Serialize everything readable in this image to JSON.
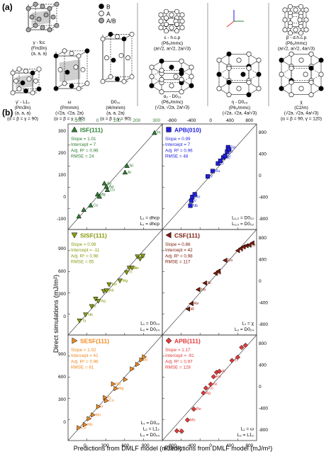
{
  "panel_a": {
    "label": "(a)",
    "legend": [
      {
        "label": "B",
        "color": "#000000"
      },
      {
        "label": "A",
        "color": "#ffffff"
      },
      {
        "label": "A/B",
        "color": "#a0a0a0"
      }
    ],
    "structures": [
      {
        "id": "gamma",
        "name": "γ - fcc",
        "group": "(Fm3̄m)",
        "params": "(a, a, a)",
        "angles": ""
      },
      {
        "id": "gamma-prime",
        "name": "γ' - L1₂",
        "group": "(Pm3̄m)",
        "params": "(a, a, a)",
        "angles": "(α = β = γ = 90)"
      },
      {
        "id": "omega",
        "name": "ω",
        "group": "(P/mmm)",
        "params": "(√2a, √2a, 2a)",
        "angles": "(α = β = γ = 90)"
      },
      {
        "id": "d022",
        "name": "D0₂₂",
        "group": "(I4/mmm)",
        "params": "(a, a, 2a)",
        "angles": "(α = β = γ = 90)"
      },
      {
        "id": "epsilon",
        "name": "ε - h.c.p",
        "group": "(P6₃/mmc)",
        "params": "(a/√2, a/√2, 2a/√3)",
        "angles": ""
      },
      {
        "id": "alpha2",
        "name": "α₂ - D0₁₉",
        "group": "(P6₃/mmc)",
        "params": "(√2a, √2a, 2a/√3)",
        "angles": ""
      },
      {
        "id": "beta",
        "name": "β - d.h.c.p",
        "group": "(P6₃/mmc)",
        "params": "(a/√2, a/√2, 4a/√3)",
        "angles": ""
      },
      {
        "id": "eta",
        "name": "η - D0₂₄",
        "group": "(P6₃/mmc)",
        "params": "(√2a, √2a, 4a/√3)",
        "angles": ""
      },
      {
        "id": "chi",
        "name": "χ",
        "group": "(C2/m)",
        "params": "(√2a, √2a, 4a/√3)",
        "angles": "(α = β = 90, γ = 120)"
      }
    ]
  },
  "panel_b": {
    "label": "(b)",
    "xlabel": "Predictions from DMLF model (mJ/m²)",
    "ylabel": "Direct simulations (mJ/m²)"
  },
  "chart_data": [
    {
      "type": "scatter",
      "title": "ISF(111)",
      "color": "#2e7d32",
      "marker": "triangle-up",
      "stats": [
        "Slope = 1.01",
        "Intercept = 7",
        "Adj. R² = 0.96",
        "RMSE = 24"
      ],
      "notes": [
        "L₁ = dhcp",
        "L₂ = dhcp"
      ],
      "xticks": [
        "-100",
        "0",
        "100",
        "200",
        "300"
      ],
      "yticks": [
        "-100",
        "0",
        "100",
        "200",
        "300"
      ],
      "xlim": [
        -150,
        330
      ],
      "ylim": [
        -150,
        330
      ],
      "points": [
        {
          "x": -95,
          "y": -90,
          "label": ""
        },
        {
          "x": -70,
          "y": -60,
          "label": ""
        },
        {
          "x": -35,
          "y": -40,
          "label": "Co"
        },
        {
          "x": 0,
          "y": 10,
          "label": "Mg"
        },
        {
          "x": 10,
          "y": 0,
          "label": ""
        },
        {
          "x": 35,
          "y": 60,
          "label": "Au"
        },
        {
          "x": 45,
          "y": 45,
          "label": "Ag"
        },
        {
          "x": 50,
          "y": 30,
          "label": "Cu"
        },
        {
          "x": 140,
          "y": 110,
          "label": "Al"
        },
        {
          "x": 150,
          "y": 140,
          "label": "Ni"
        },
        {
          "x": 290,
          "y": 290,
          "label": "Pt"
        }
      ]
    },
    {
      "type": "scatter",
      "title": "APB(010)",
      "color": "#1f1fe0",
      "marker": "square",
      "stats": [
        "Slope = 0.99",
        "Intercept = 7",
        "Adj. R² = 0.96",
        "RMSE = 48"
      ],
      "notes": [
        "L₁,₂ = D0₂₂",
        "L₁,₂ = D0₂₂"
      ],
      "xticks": [],
      "yticks": [],
      "xlim": [
        -1000,
        950
      ],
      "ylim": [
        -1000,
        950
      ],
      "points": [
        {
          "x": -420,
          "y": -560,
          "label": "Nb"
        },
        {
          "x": -400,
          "y": -470,
          "label": "V"
        },
        {
          "x": -380,
          "y": -400,
          "label": "Mo"
        },
        {
          "x": -330,
          "y": -350,
          "label": ""
        },
        {
          "x": -60,
          "y": -20,
          "label": "V"
        },
        {
          "x": 40,
          "y": 80,
          "label": "Ru"
        },
        {
          "x": 150,
          "y": 220,
          "label": "Zr"
        },
        {
          "x": 200,
          "y": 270,
          "label": ""
        },
        {
          "x": 260,
          "y": 330,
          "label": "Sc"
        },
        {
          "x": 300,
          "y": 360,
          "label": "Ti"
        },
        {
          "x": 340,
          "y": 440,
          "label": "Zr"
        },
        {
          "x": 360,
          "y": 520,
          "label": "Sa"
        },
        {
          "x": 380,
          "y": 480,
          "label": ""
        }
      ]
    },
    {
      "type": "scatter",
      "title": "SISF(111)",
      "color": "#8a9a10",
      "marker": "triangle-down",
      "stats": [
        "Slope = 0.98",
        "Intercept = -11",
        "Adj. R² = 0.98",
        "RMSE = 65"
      ],
      "notes": [
        "L₁ = D0₂₄",
        "L₂ = D0₂₄"
      ],
      "xticks": [],
      "yticks": [
        "0",
        "300",
        "600",
        "900"
      ],
      "xlim": [
        -250,
        1150
      ],
      "ylim": [
        -250,
        1150
      ],
      "points": [
        {
          "x": -80,
          "y": -60,
          "label": "Ta"
        },
        {
          "x": 10,
          "y": 20,
          "label": "Nb"
        },
        {
          "x": 100,
          "y": 130,
          "label": "Ir"
        },
        {
          "x": 160,
          "y": 230,
          "label": ""
        },
        {
          "x": 200,
          "y": 200,
          "label": "Ag"
        },
        {
          "x": 280,
          "y": 330,
          "label": "Zr"
        },
        {
          "x": 320,
          "y": 340,
          "label": "Nb"
        },
        {
          "x": 360,
          "y": 420,
          "label": "Mo"
        },
        {
          "x": 520,
          "y": 470,
          "label": "Mg"
        },
        {
          "x": 620,
          "y": 580,
          "label": "Ti"
        },
        {
          "x": 660,
          "y": 640,
          "label": "Ga"
        },
        {
          "x": 700,
          "y": 640,
          "label": "Fe"
        },
        {
          "x": 780,
          "y": 790,
          "label": "Ge"
        },
        {
          "x": 820,
          "y": 760,
          "label": ""
        },
        {
          "x": 860,
          "y": 800,
          "label": ""
        }
      ]
    },
    {
      "type": "scatter",
      "title": "CSF(111)",
      "color": "#7a1a0a",
      "marker": "triangle-left",
      "stats": [
        "Slope = 0.86",
        "Intercept = 42",
        "Adj. R² = 0.98",
        "RMSE = 117"
      ],
      "notes": [
        "L₁ = χ",
        "L₂ = D0₂₄"
      ],
      "xticks": [],
      "yticks": [],
      "xlim": [
        -1000,
        950
      ],
      "ylim": [
        -1000,
        950
      ],
      "points": [
        {
          "x": -470,
          "y": -520,
          "label": "W"
        },
        {
          "x": -400,
          "y": -420,
          "label": "Re"
        },
        {
          "x": -260,
          "y": -160,
          "label": "Mo"
        },
        {
          "x": -120,
          "y": -40,
          "label": "Ni"
        },
        {
          "x": 100,
          "y": 140,
          "label": "Al"
        },
        {
          "x": 160,
          "y": 180,
          "label": ""
        },
        {
          "x": 300,
          "y": 380,
          "label": "Co"
        },
        {
          "x": 560,
          "y": 560,
          "label": "Ti"
        },
        {
          "x": 620,
          "y": 600,
          "label": "Y"
        },
        {
          "x": 680,
          "y": 630,
          "label": ""
        },
        {
          "x": 740,
          "y": 650,
          "label": ""
        },
        {
          "x": 800,
          "y": 660,
          "label": "Zr"
        },
        {
          "x": 860,
          "y": 700,
          "label": ""
        }
      ]
    },
    {
      "type": "scatter",
      "title": "SESF(111)",
      "color": "#f08a20",
      "marker": "triangle-right",
      "stats": [
        "Slope = 1.02",
        "Intercept = 41",
        "Adj. R² = 0.96",
        "RMSE = 81"
      ],
      "notes": [
        "L₁ = D0₁₉",
        "L₂ = L1₂",
        "L₃ = D0₂₄"
      ],
      "xticks": [
        "0",
        "300",
        "600",
        "900"
      ],
      "yticks": [
        "0",
        "300",
        "600",
        "900"
      ],
      "xlim": [
        -250,
        1150
      ],
      "ylim": [
        -250,
        1150
      ],
      "points": [
        {
          "x": -90,
          "y": -80,
          "label": "Cu"
        },
        {
          "x": 0,
          "y": -40,
          "label": "Nb"
        },
        {
          "x": 60,
          "y": 40,
          "label": ""
        },
        {
          "x": 120,
          "y": 90,
          "label": "Mo"
        },
        {
          "x": 200,
          "y": 200,
          "label": "Ir"
        },
        {
          "x": 300,
          "y": 320,
          "label": "Ti"
        },
        {
          "x": 320,
          "y": 280,
          "label": "Co"
        },
        {
          "x": 420,
          "y": 500,
          "label": "Nb"
        },
        {
          "x": 460,
          "y": 440,
          "label": "Mg"
        },
        {
          "x": 600,
          "y": 560,
          "label": ""
        },
        {
          "x": 700,
          "y": 700,
          "label": ""
        },
        {
          "x": 780,
          "y": 760,
          "label": ""
        },
        {
          "x": 840,
          "y": 820,
          "label": "Al"
        },
        {
          "x": 880,
          "y": 860,
          "label": ""
        }
      ]
    },
    {
      "type": "scatter",
      "title": "APB(111)",
      "color": "#e03a3a",
      "marker": "diamond",
      "stats": [
        "Slope = 1.17",
        "Intercept = -91",
        "Adj. R² = 0.97",
        "RMSE = 128"
      ],
      "notes": [
        "L₁ = ω",
        "L₂ = L1₂"
      ],
      "xticks": [
        "-800",
        "-400",
        "0",
        "400",
        "800"
      ],
      "yticks": [
        "-800",
        "-400",
        "0",
        "400",
        "800"
      ],
      "xlim": [
        -1000,
        950
      ],
      "ylim": [
        -1000,
        950
      ],
      "points": [
        {
          "x": -700,
          "y": -820,
          "label": "Ti"
        },
        {
          "x": -600,
          "y": -830,
          "label": ""
        },
        {
          "x": -480,
          "y": -620,
          "label": "Mo"
        },
        {
          "x": -350,
          "y": -420,
          "label": "Re"
        },
        {
          "x": -150,
          "y": -120,
          "label": "Ag"
        },
        {
          "x": -100,
          "y": -30,
          "label": "Co"
        },
        {
          "x": 0,
          "y": 40,
          "label": "Ni"
        },
        {
          "x": 60,
          "y": 180,
          "label": "Pd"
        },
        {
          "x": 120,
          "y": 260,
          "label": ""
        },
        {
          "x": 180,
          "y": 280,
          "label": "Al"
        },
        {
          "x": 440,
          "y": 480,
          "label": "Ti"
        },
        {
          "x": 560,
          "y": 540,
          "label": ""
        },
        {
          "x": 640,
          "y": 720,
          "label": ""
        },
        {
          "x": 720,
          "y": 760,
          "label": ""
        }
      ]
    }
  ],
  "right_axis_ticks": [
    "800",
    "400",
    "0",
    "-400",
    "-800"
  ],
  "top_axis_ticks": [
    "-800",
    "-400",
    "0",
    "400",
    "800"
  ],
  "top_left_axis_ticks": [
    "-100",
    "0",
    "100",
    "200",
    "300"
  ]
}
